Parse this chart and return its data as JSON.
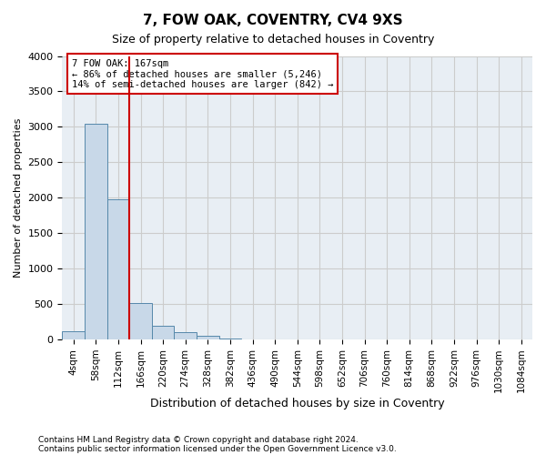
{
  "title": "7, FOW OAK, COVENTRY, CV4 9XS",
  "subtitle": "Size of property relative to detached houses in Coventry",
  "xlabel": "Distribution of detached houses by size in Coventry",
  "ylabel": "Number of detached properties",
  "footnote1": "Contains HM Land Registry data © Crown copyright and database right 2024.",
  "footnote2": "Contains public sector information licensed under the Open Government Licence v3.0.",
  "bin_labels": [
    "4sqm",
    "58sqm",
    "112sqm",
    "166sqm",
    "220sqm",
    "274sqm",
    "328sqm",
    "382sqm",
    "436sqm",
    "490sqm",
    "544sqm",
    "598sqm",
    "652sqm",
    "706sqm",
    "760sqm",
    "814sqm",
    "868sqm",
    "922sqm",
    "976sqm",
    "1030sqm",
    "1084sqm"
  ],
  "bar_values": [
    120,
    3050,
    1980,
    520,
    200,
    100,
    55,
    10,
    0,
    0,
    0,
    0,
    0,
    0,
    0,
    0,
    0,
    0,
    0,
    0,
    0
  ],
  "bar_color": "#c8d8e8",
  "bar_edge_color": "#5588aa",
  "grid_color": "#cccccc",
  "bg_color": "#e8eef4",
  "vline_pos": 2.5,
  "vline_color": "#cc0000",
  "annotation_text": "7 FOW OAK: 167sqm\n← 86% of detached houses are smaller (5,246)\n14% of semi-detached houses are larger (842) →",
  "annotation_box_color": "#cc0000",
  "ylim": [
    0,
    4000
  ],
  "yticks": [
    0,
    500,
    1000,
    1500,
    2000,
    2500,
    3000,
    3500,
    4000
  ]
}
